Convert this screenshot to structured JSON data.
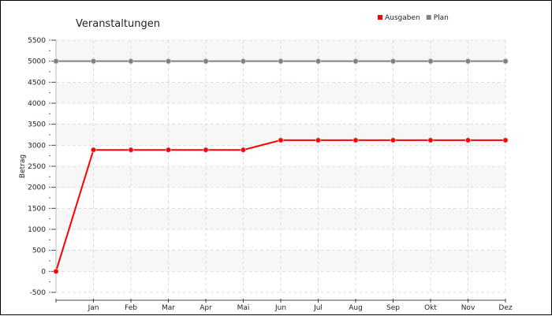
{
  "chart_data": {
    "type": "line",
    "title": "Veranstaltungen",
    "xlabel": "",
    "ylabel": "Betrag",
    "categories": [
      "",
      "Jan",
      "Feb",
      "Mar",
      "Apr",
      "Mai",
      "Jun",
      "Jul",
      "Aug",
      "Sep",
      "Okt",
      "Nov",
      "Dez"
    ],
    "y_ticks": [
      "5500",
      "5000",
      "4500",
      "4000",
      "3500",
      "3000",
      "2500",
      "2000",
      "1500",
      "1000",
      "500",
      "0",
      "-500"
    ],
    "ylim": [
      -500,
      5500
    ],
    "grid": true,
    "legend_position": "top-right",
    "series": [
      {
        "name": "Ausgaben",
        "color": "#ff0000",
        "values": [
          0,
          2890,
          2890,
          2890,
          2890,
          2890,
          3120,
          3120,
          3120,
          3120,
          3120,
          3120,
          3120
        ]
      },
      {
        "name": "Plan",
        "color": "#808080",
        "values": [
          5000,
          5000,
          5000,
          5000,
          5000,
          5000,
          5000,
          5000,
          5000,
          5000,
          5000,
          5000,
          5000
        ]
      }
    ]
  }
}
